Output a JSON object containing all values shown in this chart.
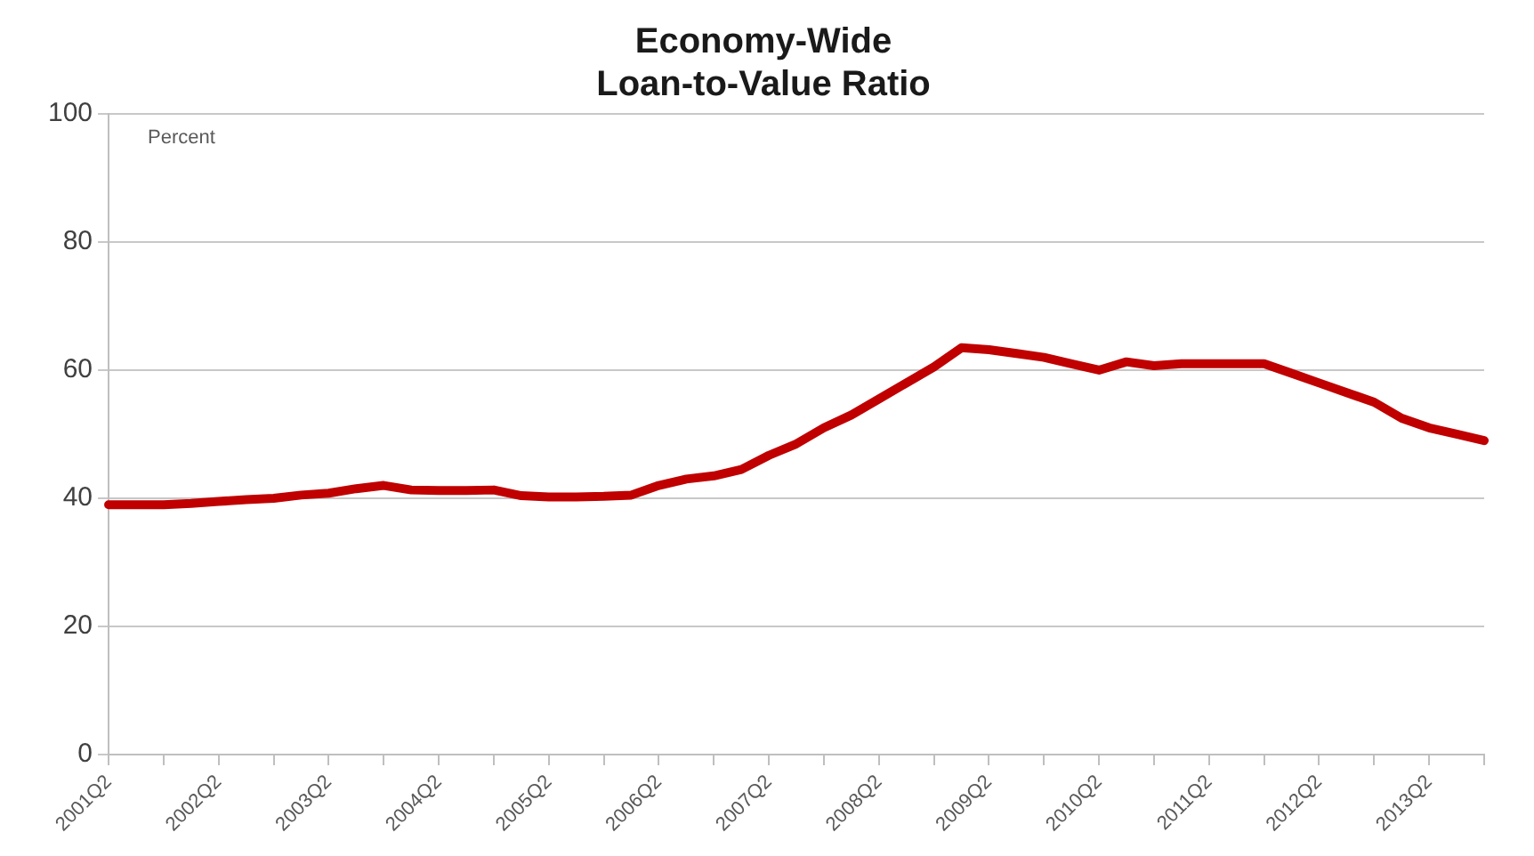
{
  "chart_data": {
    "type": "line",
    "title": "Economy-Wide\nLoan-to-Value Ratio",
    "ylabel": "Percent",
    "categories": [
      "2001Q2",
      null,
      null,
      null,
      "2002Q2",
      null,
      null,
      null,
      "2003Q2",
      null,
      null,
      null,
      "2004Q2",
      null,
      null,
      null,
      "2005Q2",
      null,
      null,
      null,
      "2006Q2",
      null,
      null,
      null,
      "2007Q2",
      null,
      null,
      null,
      "2008Q2",
      null,
      null,
      null,
      "2009Q2",
      null,
      null,
      null,
      "2010Q2",
      null,
      null,
      null,
      "2011Q2",
      null,
      null,
      null,
      "2012Q2",
      null,
      null,
      null,
      "2013Q2",
      null,
      null
    ],
    "series": [
      {
        "color": "#c00000",
        "values": [
          39.0,
          39.0,
          39.0,
          39.2,
          39.5,
          39.8,
          40.0,
          40.5,
          40.8,
          41.5,
          42.0,
          41.3,
          41.2,
          41.2,
          41.3,
          40.4,
          40.2,
          40.2,
          40.3,
          40.5,
          42.0,
          43.0,
          43.5,
          44.5,
          46.7,
          48.5,
          51.0,
          53.0,
          55.5,
          58.0,
          60.5,
          63.5,
          63.2,
          62.6,
          62.0,
          61.0,
          60.0,
          61.3,
          60.7,
          61.0,
          61.0,
          61.0,
          61.0,
          59.5,
          58.0,
          56.5,
          55.0,
          52.5,
          51.0,
          50.0,
          49.0
        ]
      }
    ],
    "ylim": [
      0,
      100
    ],
    "yticks": [
      0,
      20,
      40,
      60,
      80,
      100
    ],
    "grid": "y",
    "legend": false,
    "marker": "none",
    "line_style": "solid"
  }
}
